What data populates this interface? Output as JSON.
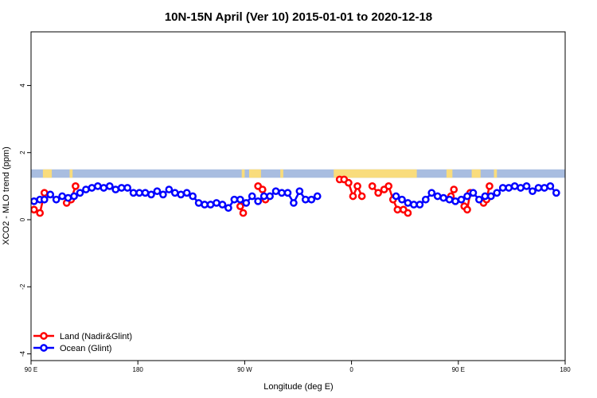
{
  "chart_data": {
    "type": "line",
    "title": "10N-15N April (Ver 10)   2015-01-01 to 2020-12-18",
    "xlabel": "Longitude (deg E)",
    "ylabel": "XCO2 - MLO trend (ppm)",
    "xlim": [
      90,
      450
    ],
    "ylim": [
      -4.2,
      5.6
    ],
    "x_ticks": [
      {
        "value": 90,
        "label": "90 E"
      },
      {
        "value": 162,
        "label": "180"
      },
      {
        "value": 234,
        "label": "90 W"
      },
      {
        "value": 306,
        "label": "0"
      },
      {
        "value": 378,
        "label": "90 E"
      },
      {
        "value": 450,
        "label": "180"
      }
    ],
    "y_ticks": [
      -4,
      -2,
      0,
      2,
      4
    ],
    "grid": false,
    "legend_position": "bottom-left",
    "band": {
      "y_min": 1.25,
      "y_max": 1.5,
      "ocean_color": "#a8bde0",
      "land_color": "#f9dc7c"
    },
    "land_segments": [
      [
        98,
        104
      ],
      [
        116,
        118
      ],
      [
        232,
        234
      ],
      [
        237,
        245
      ],
      [
        258,
        260
      ],
      [
        294,
        350
      ],
      [
        370,
        374
      ],
      [
        387,
        393
      ],
      [
        402,
        404
      ]
    ],
    "series": [
      {
        "name": "Land (Nadir&Glint)",
        "color": "#ff0000",
        "segments": [
          [
            [
              92,
              0.3
            ],
            [
              96,
              0.2
            ],
            [
              99,
              0.8
            ]
          ],
          [
            [
              114,
              0.5
            ],
            [
              117,
              0.6
            ],
            [
              120,
              1.0
            ]
          ],
          [
            [
              231,
              0.4
            ],
            [
              233,
              0.2
            ]
          ],
          [
            [
              243,
              1.0
            ],
            [
              246,
              0.9
            ],
            [
              248,
              0.6
            ]
          ],
          [
            [
              298,
              1.2
            ],
            [
              301,
              1.2
            ],
            [
              304,
              1.1
            ],
            [
              307,
              0.7
            ],
            [
              310,
              1.0
            ],
            [
              313,
              0.7
            ]
          ],
          [
            [
              320,
              1.0
            ],
            [
              324,
              0.8
            ],
            [
              328,
              0.9
            ],
            [
              331,
              1.0
            ],
            [
              334,
              0.6
            ],
            [
              337,
              0.3
            ],
            [
              341,
              0.3
            ],
            [
              344,
              0.2
            ]
          ],
          [
            [
              373,
              0.7
            ],
            [
              375,
              0.9
            ]
          ],
          [
            [
              382,
              0.4
            ],
            [
              384,
              0.3
            ],
            [
              386,
              0.8
            ]
          ],
          [
            [
              395,
              0.5
            ],
            [
              397,
              0.6
            ],
            [
              399,
              1.0
            ]
          ]
        ]
      },
      {
        "name": "Ocean (Glint)",
        "color": "#0000ff",
        "segments": [
          [
            [
              92,
              0.55
            ],
            [
              96,
              0.6
            ],
            [
              99,
              0.6
            ],
            [
              103,
              0.75
            ],
            [
              107,
              0.6
            ],
            [
              111,
              0.7
            ],
            [
              115,
              0.65
            ],
            [
              119,
              0.7
            ],
            [
              123,
              0.8
            ],
            [
              127,
              0.9
            ],
            [
              131,
              0.95
            ],
            [
              135,
              1.0
            ],
            [
              139,
              0.95
            ],
            [
              143,
              1.0
            ],
            [
              147,
              0.9
            ],
            [
              151,
              0.95
            ],
            [
              155,
              0.95
            ],
            [
              159,
              0.8
            ],
            [
              163,
              0.8
            ],
            [
              167,
              0.8
            ],
            [
              171,
              0.75
            ],
            [
              175,
              0.85
            ],
            [
              179,
              0.75
            ],
            [
              183,
              0.9
            ],
            [
              187,
              0.8
            ],
            [
              191,
              0.75
            ],
            [
              195,
              0.8
            ],
            [
              199,
              0.7
            ],
            [
              203,
              0.5
            ],
            [
              207,
              0.45
            ],
            [
              211,
              0.45
            ],
            [
              215,
              0.5
            ],
            [
              219,
              0.45
            ],
            [
              223,
              0.35
            ],
            [
              227,
              0.6
            ],
            [
              231,
              0.6
            ],
            [
              235,
              0.5
            ],
            [
              239,
              0.7
            ],
            [
              243,
              0.55
            ],
            [
              247,
              0.7
            ],
            [
              251,
              0.7
            ],
            [
              255,
              0.85
            ],
            [
              259,
              0.8
            ],
            [
              263,
              0.8
            ],
            [
              267,
              0.5
            ],
            [
              271,
              0.85
            ],
            [
              275,
              0.6
            ],
            [
              279,
              0.6
            ],
            [
              283,
              0.7
            ]
          ],
          [
            [
              336,
              0.7
            ],
            [
              340,
              0.6
            ],
            [
              344,
              0.5
            ],
            [
              348,
              0.45
            ],
            [
              352,
              0.45
            ],
            [
              356,
              0.6
            ],
            [
              360,
              0.8
            ],
            [
              364,
              0.7
            ],
            [
              368,
              0.65
            ],
            [
              372,
              0.6
            ],
            [
              376,
              0.55
            ],
            [
              380,
              0.6
            ],
            [
              384,
              0.7
            ],
            [
              388,
              0.8
            ],
            [
              392,
              0.6
            ],
            [
              396,
              0.7
            ],
            [
              400,
              0.7
            ],
            [
              404,
              0.8
            ],
            [
              408,
              0.95
            ],
            [
              412,
              0.95
            ],
            [
              416,
              1.0
            ],
            [
              420,
              0.95
            ],
            [
              424,
              1.0
            ],
            [
              428,
              0.85
            ],
            [
              432,
              0.95
            ],
            [
              436,
              0.95
            ],
            [
              440,
              1.0
            ],
            [
              444,
              0.8
            ]
          ]
        ]
      }
    ]
  }
}
